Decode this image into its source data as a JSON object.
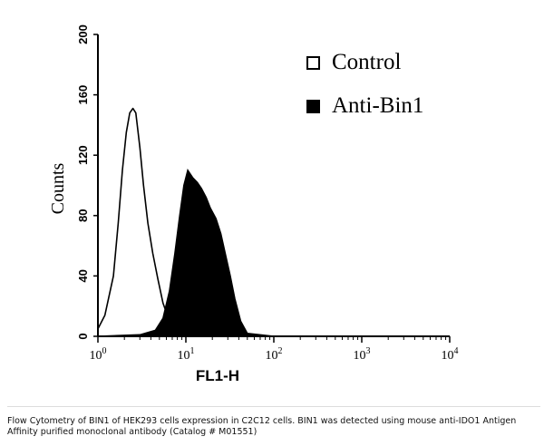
{
  "chart_data": {
    "type": "area",
    "xlabel": "FL1-H",
    "ylabel": "Counts",
    "x_scale": "log",
    "xlim": [
      1,
      10000
    ],
    "ylim": [
      0,
      200
    ],
    "x_ticks": [
      {
        "base": "10",
        "exp": "0"
      },
      {
        "base": "10",
        "exp": "1"
      },
      {
        "base": "10",
        "exp": "2"
      },
      {
        "base": "10",
        "exp": "3"
      },
      {
        "base": "10",
        "exp": "4"
      }
    ],
    "y_ticks": [
      "0",
      "40",
      "80",
      "120",
      "160",
      "200"
    ],
    "legend_position": "top-right",
    "series": [
      {
        "name": "Control",
        "style": "open",
        "color": "#000000",
        "x": [
          1.0,
          1.2,
          1.5,
          1.7,
          1.9,
          2.1,
          2.3,
          2.5,
          2.7,
          3.0,
          3.3,
          3.7,
          4.2,
          4.8,
          5.5,
          6.5,
          8.0,
          11,
          20,
          50,
          100,
          1000,
          10000
        ],
        "y": [
          5,
          14,
          40,
          75,
          110,
          135,
          148,
          151,
          148,
          125,
          100,
          75,
          55,
          38,
          22,
          10,
          4,
          2,
          1,
          0,
          0,
          0,
          0
        ]
      },
      {
        "name": "Anti-Bin1",
        "style": "filled",
        "color": "#000000",
        "x": [
          1.0,
          3.0,
          4.5,
          5.5,
          6.5,
          7.5,
          8.5,
          9.5,
          10.5,
          12,
          13.5,
          15,
          17,
          19,
          22,
          25,
          28,
          32,
          36,
          42,
          50,
          100,
          1000,
          10000
        ],
        "y": [
          0,
          1,
          4,
          12,
          30,
          55,
          80,
          100,
          110,
          105,
          102,
          98,
          92,
          85,
          78,
          68,
          55,
          40,
          25,
          10,
          2,
          0,
          0,
          0
        ]
      }
    ]
  },
  "caption": "Flow Cytometry of BIN1 of HEK293 cells expression in C2C12 cells. BIN1 was detected using mouse anti-IDO1 Antigen Affinity purified monoclonal antibody (Catalog # M01551)"
}
